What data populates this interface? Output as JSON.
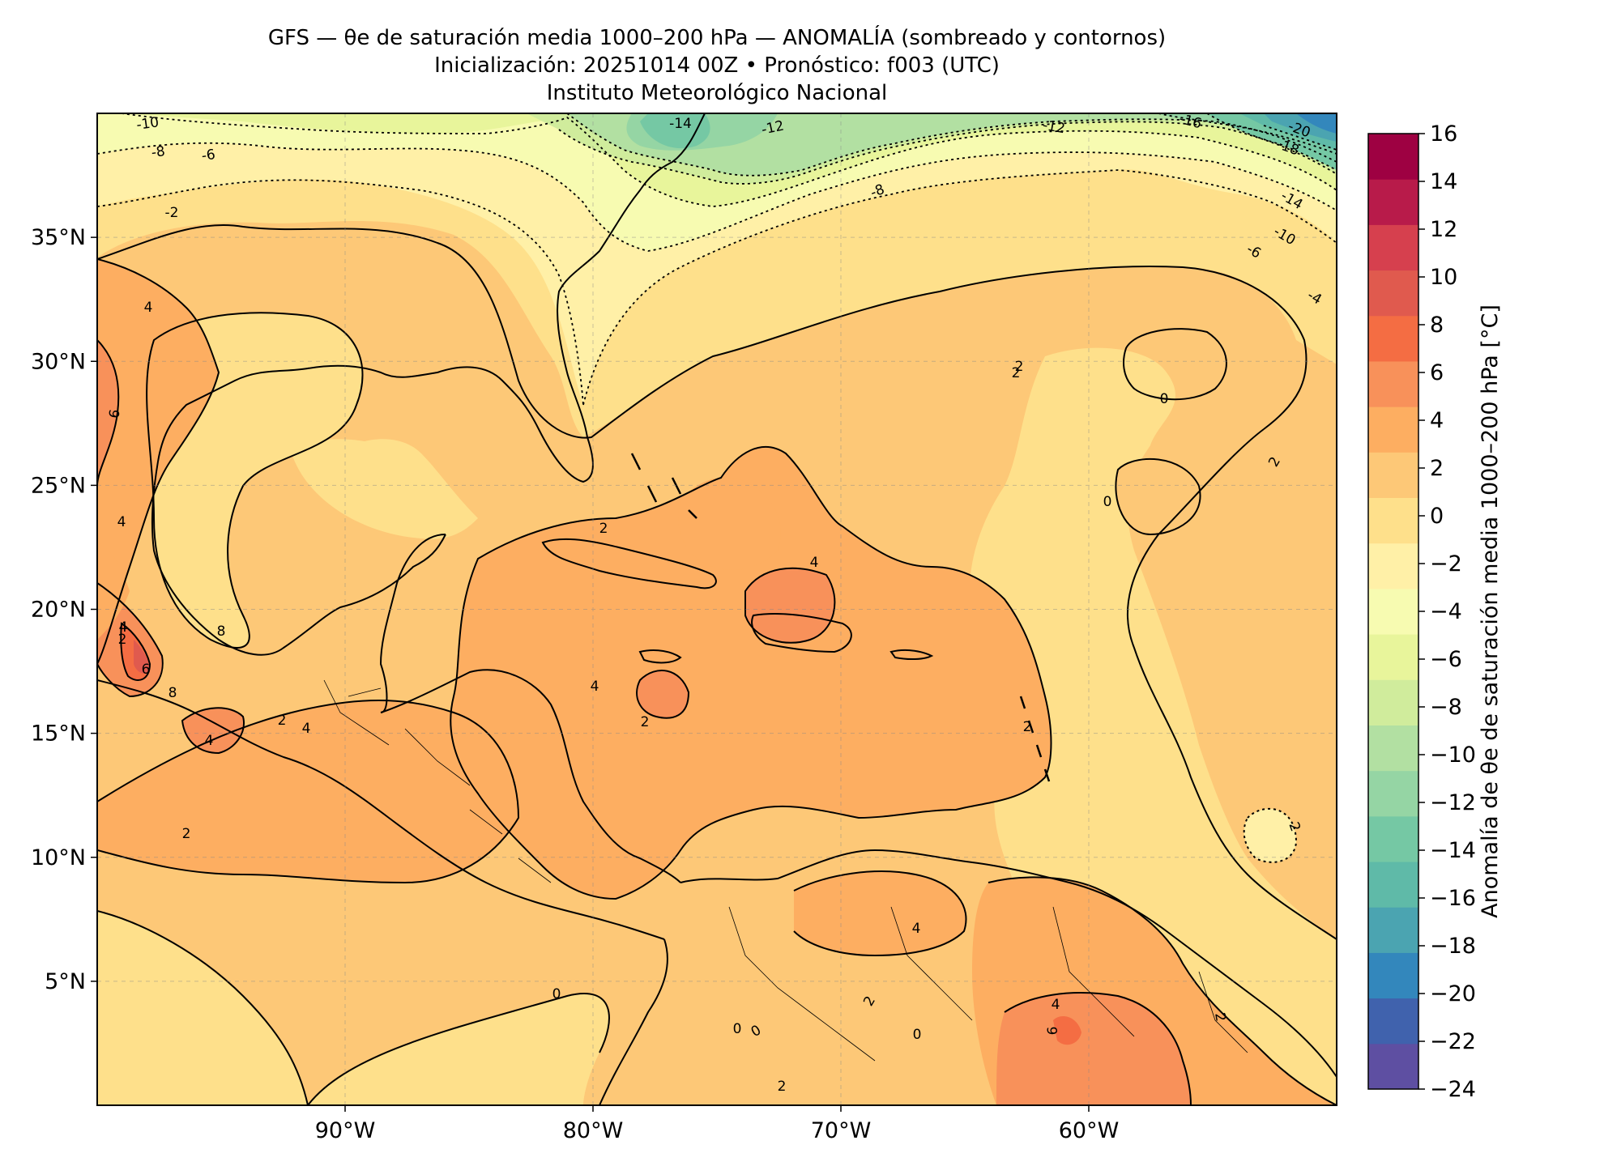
{
  "title": {
    "line1": "GFS — θe de saturación media 1000–200 hPa — ANOMALÍA (sombreado y contornos)",
    "line2": "Inicialización: 20251014 00Z   •   Pronóstico: f003 (UTC)",
    "line3": "Instituto Meteorológico Nacional"
  },
  "map": {
    "projection": "PlateCarree",
    "lon_range": [
      -100,
      -50
    ],
    "lat_range": [
      0,
      40
    ],
    "gridlines": "dashed"
  },
  "axes": {
    "x_ticks": [
      {
        "lon": -90,
        "label": "90°W"
      },
      {
        "lon": -80,
        "label": "80°W"
      },
      {
        "lon": -70,
        "label": "70°W"
      },
      {
        "lon": -60,
        "label": "60°W"
      }
    ],
    "y_ticks": [
      {
        "lat": 35,
        "label": "35°N"
      },
      {
        "lat": 30,
        "label": "30°N"
      },
      {
        "lat": 25,
        "label": "25°N"
      },
      {
        "lat": 20,
        "label": "20°N"
      },
      {
        "lat": 15,
        "label": "15°N"
      },
      {
        "lat": 10,
        "label": "10°N"
      },
      {
        "lat": 5,
        "label": "5°N"
      }
    ]
  },
  "colorbar": {
    "label": "Anomalía de θe de saturación media 1000–200 hPa [°C]",
    "levels": [
      -24,
      -22,
      -20,
      -18,
      -16,
      -14,
      -12,
      -10,
      -8,
      -6,
      -4,
      -2,
      0,
      2,
      4,
      6,
      8,
      10,
      12,
      14,
      16
    ],
    "tick_labels": [
      "16",
      "14",
      "12",
      "10",
      "8",
      "6",
      "4",
      "2",
      "0",
      "−2",
      "−4",
      "−6",
      "−8",
      "−10",
      "−12",
      "−14",
      "−16",
      "−18",
      "−20",
      "−22",
      "−24"
    ],
    "colors": [
      "#5e4fa2",
      "#4062ad",
      "#3387bc",
      "#4ba4b1",
      "#5fbaa8",
      "#75c8a4",
      "#95d5a4",
      "#b2e0a2",
      "#d0ec9c",
      "#e8f59b",
      "#f7fbb1",
      "#fff0a7",
      "#fee08b",
      "#fdc877",
      "#fdae61",
      "#f8915a",
      "#f46d43",
      "#e05a4e",
      "#d6404e",
      "#b81b4a",
      "#9e0142"
    ]
  },
  "contour_labels": [
    {
      "text": "-10"
    },
    {
      "text": "-8"
    },
    {
      "text": "-6"
    },
    {
      "text": "-2"
    },
    {
      "text": "-14"
    },
    {
      "text": "-12"
    },
    {
      "text": "-12"
    },
    {
      "text": "-16"
    },
    {
      "text": "-20"
    },
    {
      "text": "-18"
    },
    {
      "text": "-8"
    },
    {
      "text": "-14"
    },
    {
      "text": "-10"
    },
    {
      "text": "-6"
    },
    {
      "text": "-4"
    },
    {
      "text": "4"
    },
    {
      "text": "6"
    },
    {
      "text": "2"
    },
    {
      "text": "2"
    },
    {
      "text": "2"
    },
    {
      "text": "0"
    },
    {
      "text": "0"
    },
    {
      "text": "2"
    },
    {
      "text": "4"
    },
    {
      "text": "4"
    },
    {
      "text": "4"
    },
    {
      "text": "2"
    },
    {
      "text": "6"
    },
    {
      "text": "8"
    },
    {
      "text": "8"
    },
    {
      "text": "4"
    },
    {
      "text": "2"
    },
    {
      "text": "4"
    },
    {
      "text": "4"
    },
    {
      "text": "2"
    },
    {
      "text": "2"
    },
    {
      "text": "2"
    },
    {
      "text": "2"
    },
    {
      "text": "0"
    },
    {
      "text": "4"
    },
    {
      "text": "4"
    },
    {
      "text": "6"
    },
    {
      "text": "2"
    },
    {
      "text": "0"
    },
    {
      "text": "2"
    },
    {
      "text": "0"
    },
    {
      "text": "2"
    },
    {
      "text": "0"
    }
  ]
}
